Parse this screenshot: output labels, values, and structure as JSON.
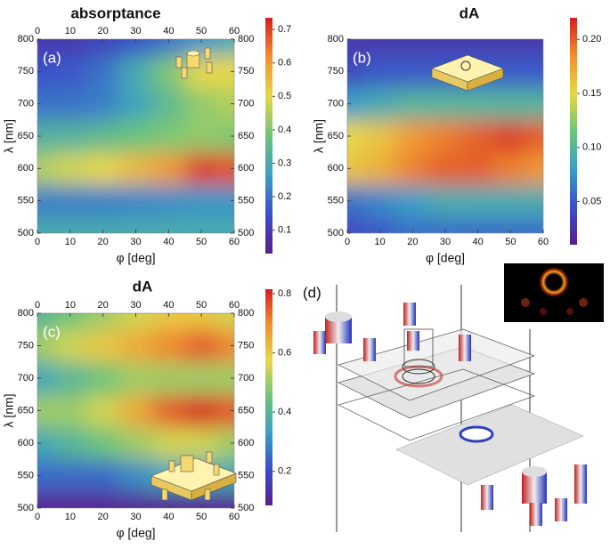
{
  "chart_data": [
    {
      "type": "heatmap",
      "title": "absorptance",
      "panel_label": "(a)",
      "xlabel": "φ [deg]",
      "ylabel": "λ [nm]",
      "x": [
        0,
        10,
        20,
        30,
        40,
        50,
        60
      ],
      "y": [
        500,
        550,
        600,
        650,
        700,
        750,
        800
      ],
      "values": [
        [
          0.3,
          0.3,
          0.3,
          0.3,
          0.3,
          0.3,
          0.3
        ],
        [
          0.22,
          0.22,
          0.22,
          0.23,
          0.24,
          0.25,
          0.25
        ],
        [
          0.45,
          0.48,
          0.5,
          0.55,
          0.6,
          0.7,
          0.68
        ],
        [
          0.32,
          0.33,
          0.35,
          0.38,
          0.4,
          0.42,
          0.4
        ],
        [
          0.2,
          0.2,
          0.22,
          0.28,
          0.35,
          0.42,
          0.45
        ],
        [
          0.15,
          0.16,
          0.2,
          0.3,
          0.4,
          0.5,
          0.5
        ],
        [
          0.1,
          0.1,
          0.12,
          0.15,
          0.2,
          0.25,
          0.3
        ]
      ],
      "xlim": [
        0,
        60
      ],
      "ylim": [
        500,
        800
      ],
      "xticks": [
        0,
        10,
        20,
        30,
        40,
        50,
        60
      ],
      "yticks": [
        500,
        550,
        600,
        650,
        700,
        750,
        800
      ],
      "mirror_ticks": true,
      "clim": [
        0.03,
        0.735
      ],
      "cticks": [
        0.1,
        0.2,
        0.3,
        0.4,
        0.5,
        0.6,
        0.7
      ],
      "colormap": [
        "#5a1e8c",
        "#3a4fc8",
        "#3a9fc6",
        "#6cc47a",
        "#e6d84a",
        "#f09030",
        "#d42020"
      ]
    },
    {
      "type": "heatmap",
      "title": "dA",
      "panel_label": "(b)",
      "xlabel": "φ [deg]",
      "ylabel": "λ [nm]",
      "x": [
        0,
        10,
        20,
        30,
        40,
        50,
        60
      ],
      "y": [
        500,
        550,
        600,
        650,
        700,
        750,
        800
      ],
      "values": [
        [
          0.04,
          0.05,
          0.06,
          0.06,
          0.06,
          0.06,
          0.06
        ],
        [
          0.06,
          0.07,
          0.08,
          0.09,
          0.09,
          0.09,
          0.09
        ],
        [
          0.16,
          0.17,
          0.19,
          0.2,
          0.2,
          0.19,
          0.18
        ],
        [
          0.15,
          0.16,
          0.18,
          0.19,
          0.2,
          0.21,
          0.2
        ],
        [
          0.08,
          0.09,
          0.1,
          0.1,
          0.1,
          0.1,
          0.1
        ],
        [
          0.04,
          0.05,
          0.05,
          0.05,
          0.05,
          0.05,
          0.05
        ],
        [
          0.03,
          0.03,
          0.03,
          0.03,
          0.03,
          0.03,
          0.03
        ]
      ],
      "xlim": [
        0,
        60
      ],
      "ylim": [
        500,
        800
      ],
      "xticks": [
        0,
        10,
        20,
        30,
        40,
        50,
        60
      ],
      "yticks": [
        500,
        550,
        600,
        650,
        700,
        750,
        800
      ],
      "mirror_ticks": false,
      "clim": [
        0.01,
        0.22
      ],
      "cticks": [
        0.05,
        {
          "value": 0.1,
          "label": "0.10"
        },
        0.15,
        {
          "value": 0.2,
          "label": "0.20"
        }
      ],
      "colormap": [
        "#5a1e8c",
        "#3a4fc8",
        "#3a9fc6",
        "#6cc47a",
        "#e6d84a",
        "#f09030",
        "#d42020"
      ]
    },
    {
      "type": "heatmap",
      "title": "dA",
      "panel_label": "(c)",
      "xlabel": "φ [deg]",
      "ylabel": "λ [nm]",
      "x": [
        0,
        10,
        20,
        30,
        40,
        50,
        60
      ],
      "y": [
        500,
        550,
        600,
        650,
        700,
        750,
        800
      ],
      "values": [
        [
          0.1,
          0.1,
          0.1,
          0.1,
          0.1,
          0.1,
          0.1
        ],
        [
          0.25,
          0.25,
          0.25,
          0.3,
          0.35,
          0.35,
          0.35
        ],
        [
          0.35,
          0.4,
          0.45,
          0.5,
          0.55,
          0.55,
          0.5
        ],
        [
          0.5,
          0.5,
          0.55,
          0.65,
          0.75,
          0.8,
          0.75
        ],
        [
          0.35,
          0.4,
          0.45,
          0.5,
          0.5,
          0.5,
          0.5
        ],
        [
          0.5,
          0.55,
          0.6,
          0.65,
          0.7,
          0.75,
          0.7
        ],
        [
          0.4,
          0.45,
          0.5,
          0.55,
          0.6,
          0.6,
          0.55
        ]
      ],
      "xlim": [
        0,
        60
      ],
      "ylim": [
        500,
        800
      ],
      "xticks": [
        0,
        10,
        20,
        30,
        40,
        50,
        60
      ],
      "yticks": [
        500,
        550,
        600,
        650,
        700,
        750,
        800
      ],
      "mirror_ticks": true,
      "clim": [
        0.085,
        0.815
      ],
      "cticks": [
        0.2,
        0.4,
        0.6,
        0.8
      ],
      "colormap": [
        "#5a1e8c",
        "#3a4fc8",
        "#3a9fc6",
        "#6cc47a",
        "#e6d84a",
        "#f09030",
        "#d42020"
      ]
    }
  ],
  "panel_d": {
    "panel_label": "(d)"
  }
}
